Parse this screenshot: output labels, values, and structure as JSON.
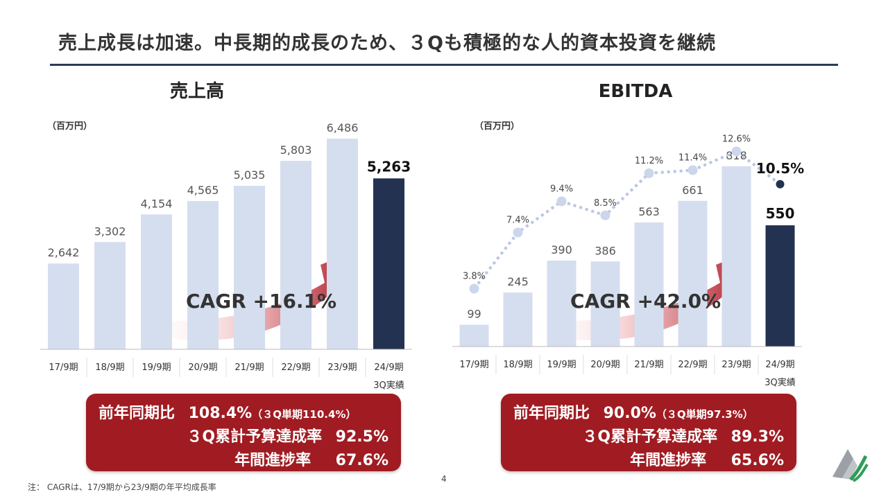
{
  "title": "売上成長は加速。中長期的成長のため、３Qも積極的な人的資本投資を継続",
  "colors": {
    "bar": "#d5deef",
    "bar_highlight": "#233250",
    "summary_bg": "#a01c22",
    "arrow": "#b01f2a",
    "rule": "#2b3a55"
  },
  "chart_data": [
    {
      "type": "bar",
      "title": "売上高",
      "unit_label": "（百万円）",
      "categories": [
        "17/9期",
        "18/9期",
        "19/9期",
        "20/9期",
        "21/9期",
        "22/9期",
        "23/9期",
        "24/9期"
      ],
      "category_note": "3Q実績",
      "values": [
        2642,
        3302,
        4154,
        4565,
        5035,
        5803,
        6486,
        5263
      ],
      "value_labels": [
        "2,642",
        "3,302",
        "4,154",
        "4,565",
        "5,035",
        "5,803",
        "6,486",
        "5,263"
      ],
      "highlight_index": 7,
      "ylim": [
        0,
        7000
      ],
      "annotation": "CAGR +16.1%"
    },
    {
      "type": "bar+line",
      "title": "EBITDA",
      "unit_label": "（百万円）",
      "categories": [
        "17/9期",
        "18/9期",
        "19/9期",
        "20/9期",
        "21/9期",
        "22/9期",
        "23/9期",
        "24/9期"
      ],
      "category_note": "3Q実績",
      "values": [
        99,
        245,
        390,
        386,
        563,
        661,
        818,
        550
      ],
      "value_labels": [
        "99",
        "245",
        "390",
        "386",
        "563",
        "661",
        "818",
        "550"
      ],
      "highlight_index": 7,
      "ylim": [
        0,
        1000
      ],
      "margin_series": {
        "values": [
          3.8,
          7.4,
          9.4,
          8.5,
          11.2,
          11.4,
          12.6,
          10.5
        ],
        "labels": [
          "3.8%",
          "7.4%",
          "9.4%",
          "8.5%",
          "11.2%",
          "11.4%",
          "12.6%",
          "10.5%"
        ]
      },
      "annotation": "CAGR +42.0%"
    }
  ],
  "summaries": [
    {
      "yoy_label": "前年同期比",
      "yoy_value": "108.4%",
      "q_single": "（３Q単期110.4%）",
      "budget_label": "３Q累計予算達成率",
      "budget_value": "92.5%",
      "progress_label": "年間進捗率",
      "progress_value": "67.6%"
    },
    {
      "yoy_label": "前年同期比",
      "yoy_value": "90.0%",
      "q_single": "（３Q単期97.3%）",
      "budget_label": "３Q累計予算達成率",
      "budget_value": "89.3%",
      "progress_label": "年間進捗率",
      "progress_value": "65.6%"
    }
  ],
  "footnote": "注： CAGRは、17/9期から23/9期の年平均成長率",
  "page_number": "4"
}
